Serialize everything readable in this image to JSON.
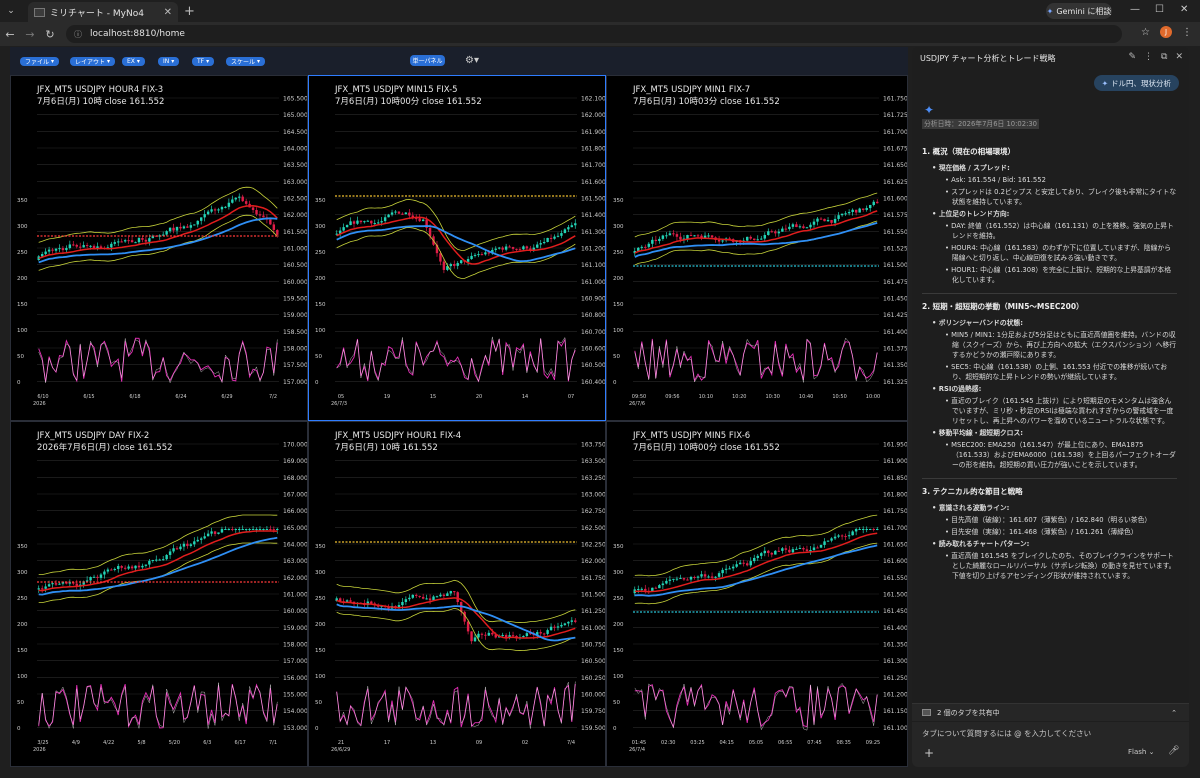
{
  "browser": {
    "tab_title": "ミリチャート - MyNo4",
    "tab_close": "✕",
    "new_tab": "+",
    "gemini_label": "Gemini に相談",
    "url": "localhost:8810/home",
    "profile_initial": "J"
  },
  "toolbar": {
    "menus": [
      "ファイル",
      "レイアウト",
      "EX",
      "IN",
      "TF",
      "スケール"
    ],
    "single_panel_label": "単一パネル"
  },
  "panels": [
    {
      "title": "JFX_MT5 USDJPY HOUR4 FIX-3",
      "subtitle": "7月6日(月) 10時 close 161.552",
      "y_ticks": [
        "165.500",
        "165.000",
        "164.500",
        "164.000",
        "163.500",
        "163.000",
        "162.500",
        "162.000",
        "161.500",
        "161.000",
        "160.500",
        "160.000",
        "159.500",
        "159.000",
        "158.500",
        "158.000",
        "157.500",
        "157.000"
      ],
      "x_ticks": [
        "6/10",
        "6/15",
        "6/18",
        "6/24",
        "6/29",
        "7/2"
      ],
      "year_label": "2026",
      "rsi_ticks": [
        "350",
        "300",
        "250",
        "200",
        "150",
        "100",
        "50",
        "0"
      ],
      "active": false
    },
    {
      "title": "JFX_MT5 USDJPY MIN15 FIX-5",
      "subtitle": "7月6日(月) 10時00分 close 161.552",
      "y_ticks": [
        "162.100",
        "162.000",
        "161.900",
        "161.800",
        "161.700",
        "161.600",
        "161.500",
        "161.400",
        "161.300",
        "161.200",
        "161.100",
        "161.000",
        "160.900",
        "160.800",
        "160.700",
        "160.600",
        "160.500",
        "160.400"
      ],
      "x_ticks": [
        "05",
        "19",
        "15",
        "20",
        "14",
        "07"
      ],
      "year_label": "26/7/3",
      "rsi_ticks": [
        "350",
        "300",
        "250",
        "200",
        "150",
        "100",
        "50",
        "0"
      ],
      "active": true
    },
    {
      "title": "JFX_MT5 USDJPY MIN1 FIX-7",
      "subtitle": "7月6日(月) 10時03分 close 161.552",
      "y_ticks": [
        "161.750",
        "161.725",
        "161.700",
        "161.675",
        "161.650",
        "161.625",
        "161.600",
        "161.575",
        "161.550",
        "161.525",
        "161.500",
        "161.475",
        "161.450",
        "161.425",
        "161.400",
        "161.375",
        "161.350",
        "161.325"
      ],
      "x_ticks": [
        "09:50",
        "09:56",
        "10:10",
        "10:20",
        "10:30",
        "10:40",
        "10:50",
        "10:00"
      ],
      "year_label": "26/7/6",
      "rsi_ticks": [
        "350",
        "300",
        "250",
        "200",
        "150",
        "100",
        "50",
        "0"
      ],
      "active": false
    },
    {
      "title": "JFX_MT5 USDJPY DAY FIX-2",
      "subtitle": "2026年7月6日(月) close 161.552",
      "y_ticks": [
        "170.000",
        "169.000",
        "168.000",
        "167.000",
        "166.000",
        "165.000",
        "164.000",
        "163.000",
        "162.000",
        "161.000",
        "160.000",
        "159.000",
        "158.000",
        "157.000",
        "156.000",
        "155.000",
        "154.000",
        "153.000"
      ],
      "x_ticks": [
        "3/25",
        "4/9",
        "4/22",
        "5/8",
        "5/20",
        "6/3",
        "6/17",
        "7/1"
      ],
      "year_label": "2026",
      "rsi_ticks": [
        "350",
        "300",
        "250",
        "200",
        "150",
        "100",
        "50",
        "0"
      ],
      "active": false
    },
    {
      "title": "JFX_MT5 USDJPY HOUR1 FIX-4",
      "subtitle": "7月6日(月) 10時 161.552",
      "y_ticks": [
        "163.750",
        "163.500",
        "163.250",
        "163.000",
        "162.750",
        "162.500",
        "162.250",
        "162.000",
        "161.750",
        "161.500",
        "161.250",
        "161.000",
        "160.750",
        "160.500",
        "160.250",
        "160.000",
        "159.750",
        "159.500"
      ],
      "x_ticks": [
        "21",
        "17",
        "13",
        "09",
        "02",
        "7/4"
      ],
      "year_label": "26/6/29",
      "rsi_ticks": [
        "350",
        "300",
        "250",
        "200",
        "150",
        "100",
        "50",
        "0"
      ],
      "active": false
    },
    {
      "title": "JFX_MT5 USDJPY MIN5 FIX-6",
      "subtitle": "7月6日(月) 10時00分 close 161.552",
      "y_ticks": [
        "161.950",
        "161.900",
        "161.850",
        "161.800",
        "161.750",
        "161.700",
        "161.650",
        "161.600",
        "161.550",
        "161.500",
        "161.450",
        "161.400",
        "161.350",
        "161.300",
        "161.250",
        "161.200",
        "161.150",
        "161.100"
      ],
      "x_ticks": [
        "01:45",
        "02:30",
        "03:25",
        "04:15",
        "05:05",
        "06:55",
        "07:45",
        "08:35",
        "09:25"
      ],
      "year_label": "26/7/4",
      "rsi_ticks": [
        "350",
        "300",
        "250",
        "200",
        "150",
        "100",
        "50",
        "0"
      ],
      "active": false
    }
  ],
  "sidebar": {
    "title": "USDJPY チャート分析とトレード戦略",
    "user_message": "ドル円、現状分析",
    "analysis_date": "分析日時：2026年7月6日 10:02:30",
    "s1_title": "1. 概況（現在の相場環境）",
    "s1_b1": "現在価格 / スプレッド:",
    "s1_b1_1": "Ask: 161.554 / Bid: 161.552",
    "s1_b1_2": "スプレッドは 0.2ピップス と安定しており、ブレイク後も非常にタイトな状態を維持しています。",
    "s1_b2": "上位足のトレンド方向:",
    "s1_b2_1": "DAY: 終値（161.552）は中心線（161.131）の上を推移。強気の上昇トレンドを維持。",
    "s1_b2_2": "HOUR4: 中心線（161.583）のわずか下に位置していますが、陰線から陽線へと切り返し、中心線回復を試みる強い動きです。",
    "s1_b2_3": "HOUR1: 中心線（161.308）を完全に上抜け、短期的な上昇基調が本格化しています。",
    "s2_title": "2. 短期・超短期の挙動（MIN5〜MSEC200）",
    "s2_b1": "ボリンジャーバンドの状態:",
    "s2_b1_1": "MIN5 / MIN1: 1分足および5分足はともに直近高値圏を維持。バンドの収縮（スクイーズ）から、再び上方向への拡大（エクスパンション）へ移行するかどうかの瀬戸際にあります。",
    "s2_b1_2": "SEC5: 中心線（161.538）の上側、161.553 付近での推移が続いており、超短期的な上昇トレンドの勢いが継続しています。",
    "s2_b2": "RSIの過熱感:",
    "s2_b2_1": "直近のブレイク（161.545 上抜け）により短期足のモメンタムは強含んでいますが、ミリ秒・秒足のRSIは極端な買われすぎからの警戒域を一度リセットし、再上昇へのパワーを溜めているニュートラルな状態です。",
    "s2_b3": "移動平均線・超短期クロス:",
    "s2_b3_1": "MSEC200: EMA250（161.547）が最上位にあり、EMA1875（161.533）およびEMA6000（161.538）を上回るパーフェクトオーダーの形を維持。超短期の買い圧力が強いことを示しています。",
    "s3_title": "3. テクニカル的な節目と戦略",
    "s3_b1": "意識される波動ライン:",
    "s3_b1_1": "目先高値（破線）：161.607（薄紫色）/ 162.840（明るい茶色）",
    "s3_b1_2": "目先安値（実線）：161.468（薄紫色）/ 161.261（薄緑色）",
    "s3_b2": "読み取れるチャートパターン:",
    "s3_b2_1": "直近高値 161.545 をブレイクしたのち、そのブレイクラインをサポートとした綺麗なロールリバーサル（サポレジ転換）の動きを見せています。下値を切り上げるアセンディング形状が維持されています。",
    "share_label": "2 個のタブを共有中",
    "input_placeholder": "タブについて質問するには @ を入力してください",
    "model_label": "Flash"
  },
  "colors": {
    "candle_up": "#22d3b6",
    "candle_down": "#e11d48",
    "ema_fast": "#e11d1d",
    "ema_slow": "#2f8ff5",
    "band": "#c7d33a",
    "rsi": "#e62fb8",
    "accent": "#2a6fd6"
  }
}
